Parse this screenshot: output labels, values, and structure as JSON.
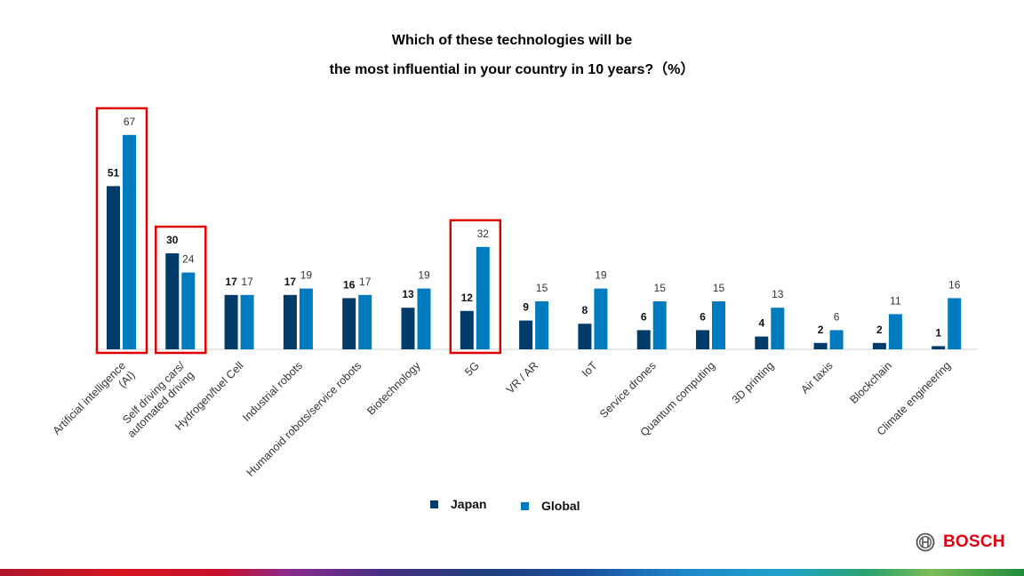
{
  "title_line1": "Which of these technologies will be",
  "title_line2": "the most influential in your country in 10 years?（%）",
  "colors": {
    "japan": "#003b6a",
    "global": "#007bc0",
    "highlight": "#e00000",
    "brand": "#e20015"
  },
  "legend": {
    "japan": "Japan",
    "global": "Global"
  },
  "brand": {
    "name": "BOSCH"
  },
  "chart_data": {
    "type": "bar",
    "title": "Which of these technologies will be the most influential in your country in 10 years?（%）",
    "categories": [
      "Artificial intelligence (AI)",
      "Self driving cars/ automated driving",
      "Hydrogen/fuel Cell",
      "Industrial robots",
      "Humanoid robots/service robots",
      "Biotechnology",
      "5G",
      "VR / AR",
      "IoT",
      "Service drones",
      "Quantum computing",
      "3D printing",
      "Air taxis",
      "Blockchain",
      "Climate engineering"
    ],
    "category_lines": [
      [
        "Artificial intelligence",
        "(AI)"
      ],
      [
        "Self driving cars/",
        "automated driving"
      ],
      [
        "Hydrogen/fuel Cell"
      ],
      [
        "Industrial robots"
      ],
      [
        "Humanoid robots/service robots"
      ],
      [
        "Biotechnology"
      ],
      [
        "5G"
      ],
      [
        "VR / AR"
      ],
      [
        "IoT"
      ],
      [
        "Service drones"
      ],
      [
        "Quantum computing"
      ],
      [
        "3D printing"
      ],
      [
        "Air taxis"
      ],
      [
        "Blockchain"
      ],
      [
        "Climate engineering"
      ]
    ],
    "series": [
      {
        "name": "Japan",
        "values": [
          51,
          30,
          17,
          17,
          16,
          13,
          12,
          9,
          8,
          6,
          6,
          4,
          2,
          2,
          1
        ]
      },
      {
        "name": "Global",
        "values": [
          67,
          24,
          17,
          19,
          17,
          19,
          32,
          15,
          19,
          15,
          15,
          13,
          6,
          11,
          16
        ]
      }
    ],
    "highlighted_categories": [
      "Artificial intelligence (AI)",
      "Self driving cars/ automated driving",
      "5G"
    ],
    "ylim": [
      0,
      70
    ],
    "xlabel": "",
    "ylabel": "",
    "grid": false,
    "legend_position": "bottom-center"
  }
}
